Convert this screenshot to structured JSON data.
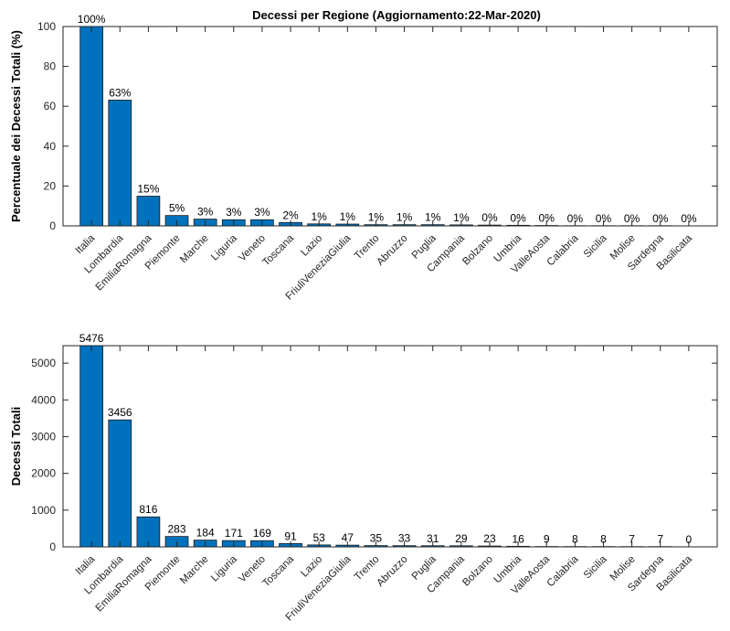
{
  "colors": {
    "bar": "#0072bd",
    "bar_edge": "#1a1a1a",
    "axis": "#262626"
  },
  "chart_data": [
    {
      "type": "bar",
      "title": "Decessi per Regione (Aggiornamento:22-Mar-2020)",
      "ylabel": "Percentuale dei Decessi Totali (%)",
      "xlabel": "",
      "ylim": [
        0,
        100
      ],
      "yticks": [
        0,
        20,
        40,
        60,
        80,
        100
      ],
      "categories": [
        "Italia",
        "Lombardia",
        "EmiliaRomagna",
        "Piemonte",
        "Marche",
        "Liguria",
        "Veneto",
        "Toscana",
        "Lazio",
        "FriuliVeneziaGiulia",
        "Trento",
        "Abruzzo",
        "Puglia",
        "Campania",
        "Bolzano",
        "Umbria",
        "ValleAosta",
        "Calabria",
        "Sicilia",
        "Molise",
        "Sardegna",
        "Basilicata"
      ],
      "values": [
        100,
        63.1,
        14.9,
        5.2,
        3.4,
        3.1,
        3.1,
        1.7,
        1.0,
        0.9,
        0.6,
        0.6,
        0.6,
        0.5,
        0.4,
        0.3,
        0.2,
        0.1,
        0.1,
        0.1,
        0.1,
        0.0
      ],
      "data_labels": [
        "100%",
        "63%",
        "15%",
        "5%",
        "3%",
        "3%",
        "3%",
        "2%",
        "1%",
        "1%",
        "1%",
        "1%",
        "1%",
        "1%",
        "0%",
        "0%",
        "0%",
        "0%",
        "0%",
        "0%",
        "0%",
        "0%"
      ]
    },
    {
      "type": "bar",
      "title": "",
      "ylabel": "Decessi Totali",
      "xlabel": "",
      "ylim": [
        0,
        5476
      ],
      "yticks": [
        0,
        1000,
        2000,
        3000,
        4000,
        5000
      ],
      "categories": [
        "Italia",
        "Lombardia",
        "EmiliaRomagna",
        "Piemonte",
        "Marche",
        "Liguria",
        "Veneto",
        "Toscana",
        "Lazio",
        "FriuliVeneziaGiulia",
        "Trento",
        "Abruzzo",
        "Puglia",
        "Campania",
        "Bolzano",
        "Umbria",
        "ValleAosta",
        "Calabria",
        "Sicilia",
        "Molise",
        "Sardegna",
        "Basilicata"
      ],
      "values": [
        5476,
        3456,
        816,
        283,
        184,
        171,
        169,
        91,
        53,
        47,
        35,
        33,
        31,
        29,
        23,
        16,
        9,
        8,
        8,
        7,
        7,
        0
      ],
      "data_labels": [
        "5476",
        "3456",
        "816",
        "283",
        "184",
        "171",
        "169",
        "91",
        "53",
        "47",
        "35",
        "33",
        "31",
        "29",
        "23",
        "16",
        "9",
        "8",
        "8",
        "7",
        "7",
        "0"
      ]
    }
  ]
}
